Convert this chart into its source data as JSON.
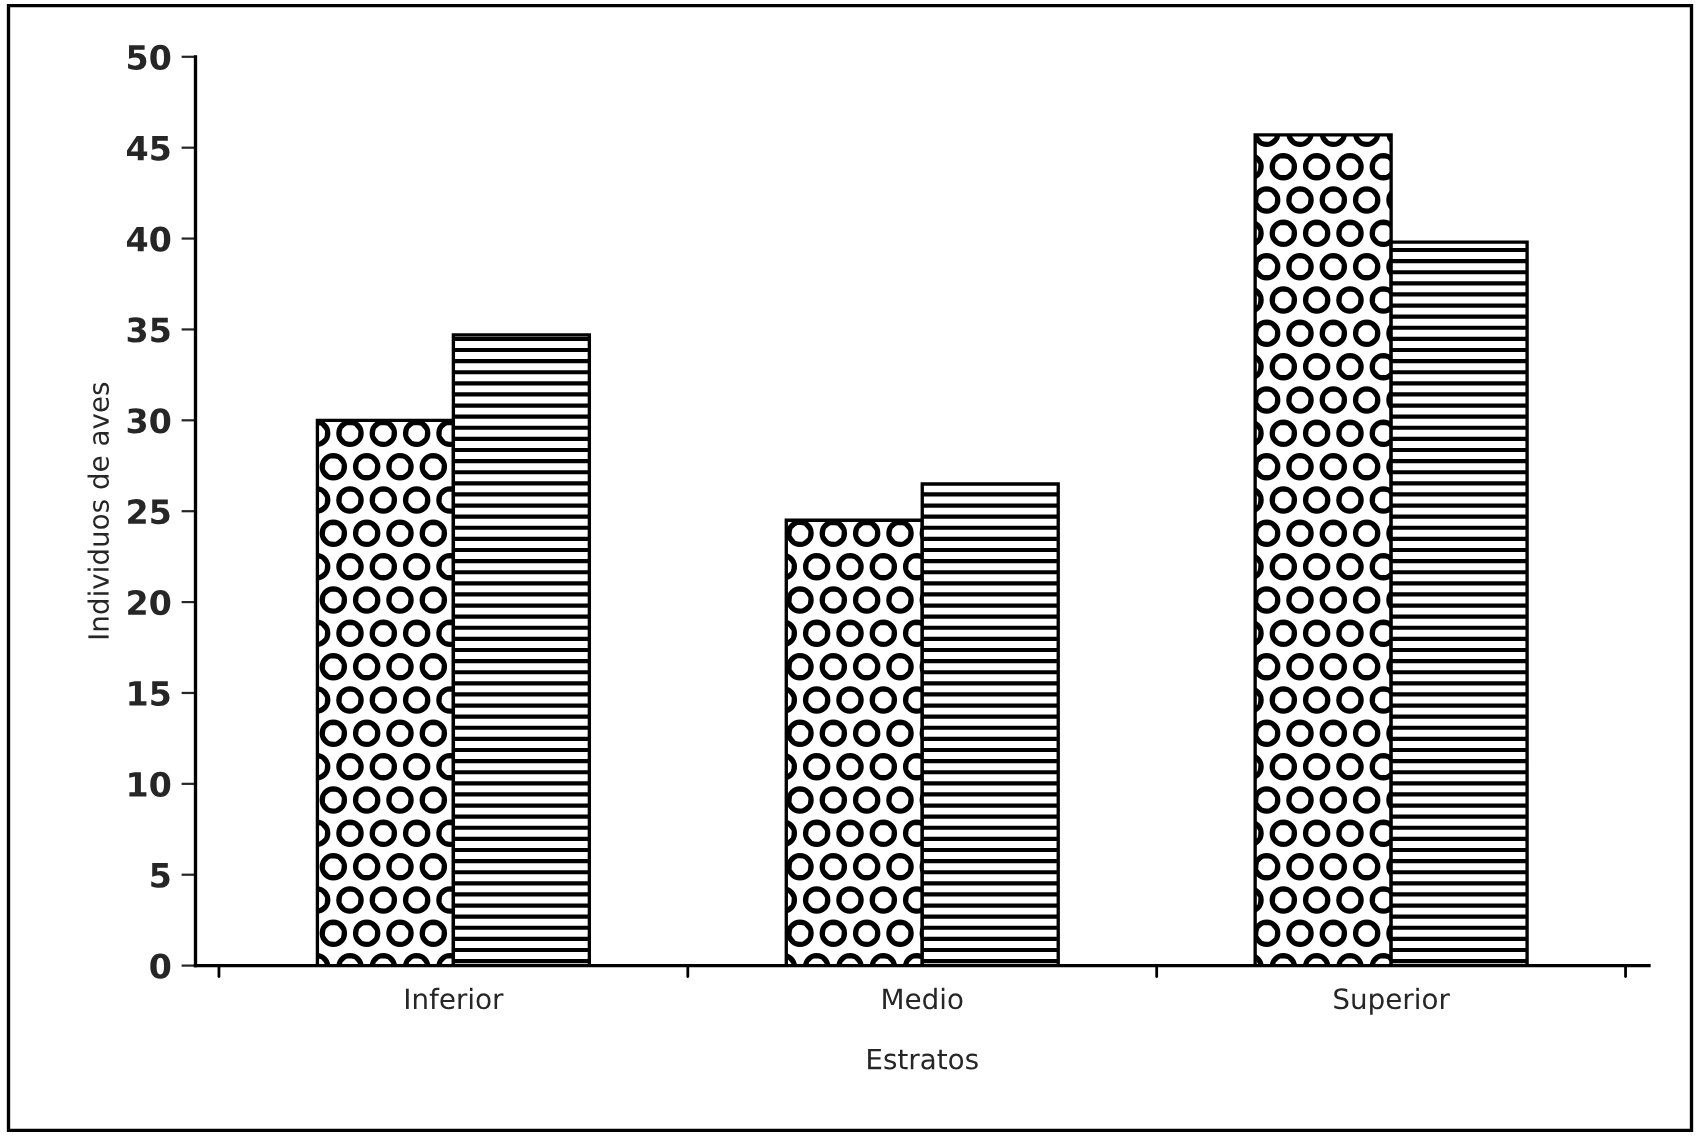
{
  "chart_data": {
    "type": "bar",
    "xlabel": "Estratos",
    "ylabel": "Individuos de aves",
    "categories": [
      "Inferior",
      "Medio",
      "Superior"
    ],
    "series": [
      {
        "color": "#000000",
        "values": [
          30,
          24.5,
          45.7
        ]
      },
      {
        "color": "#000000",
        "values": [
          34.7,
          26.5,
          39.8
        ]
      }
    ],
    "ylim": [
      0,
      50
    ],
    "yticks": [
      0,
      5,
      10,
      15,
      20,
      25,
      30,
      35,
      40,
      45,
      50
    ],
    "grid": false,
    "legend": false
  }
}
